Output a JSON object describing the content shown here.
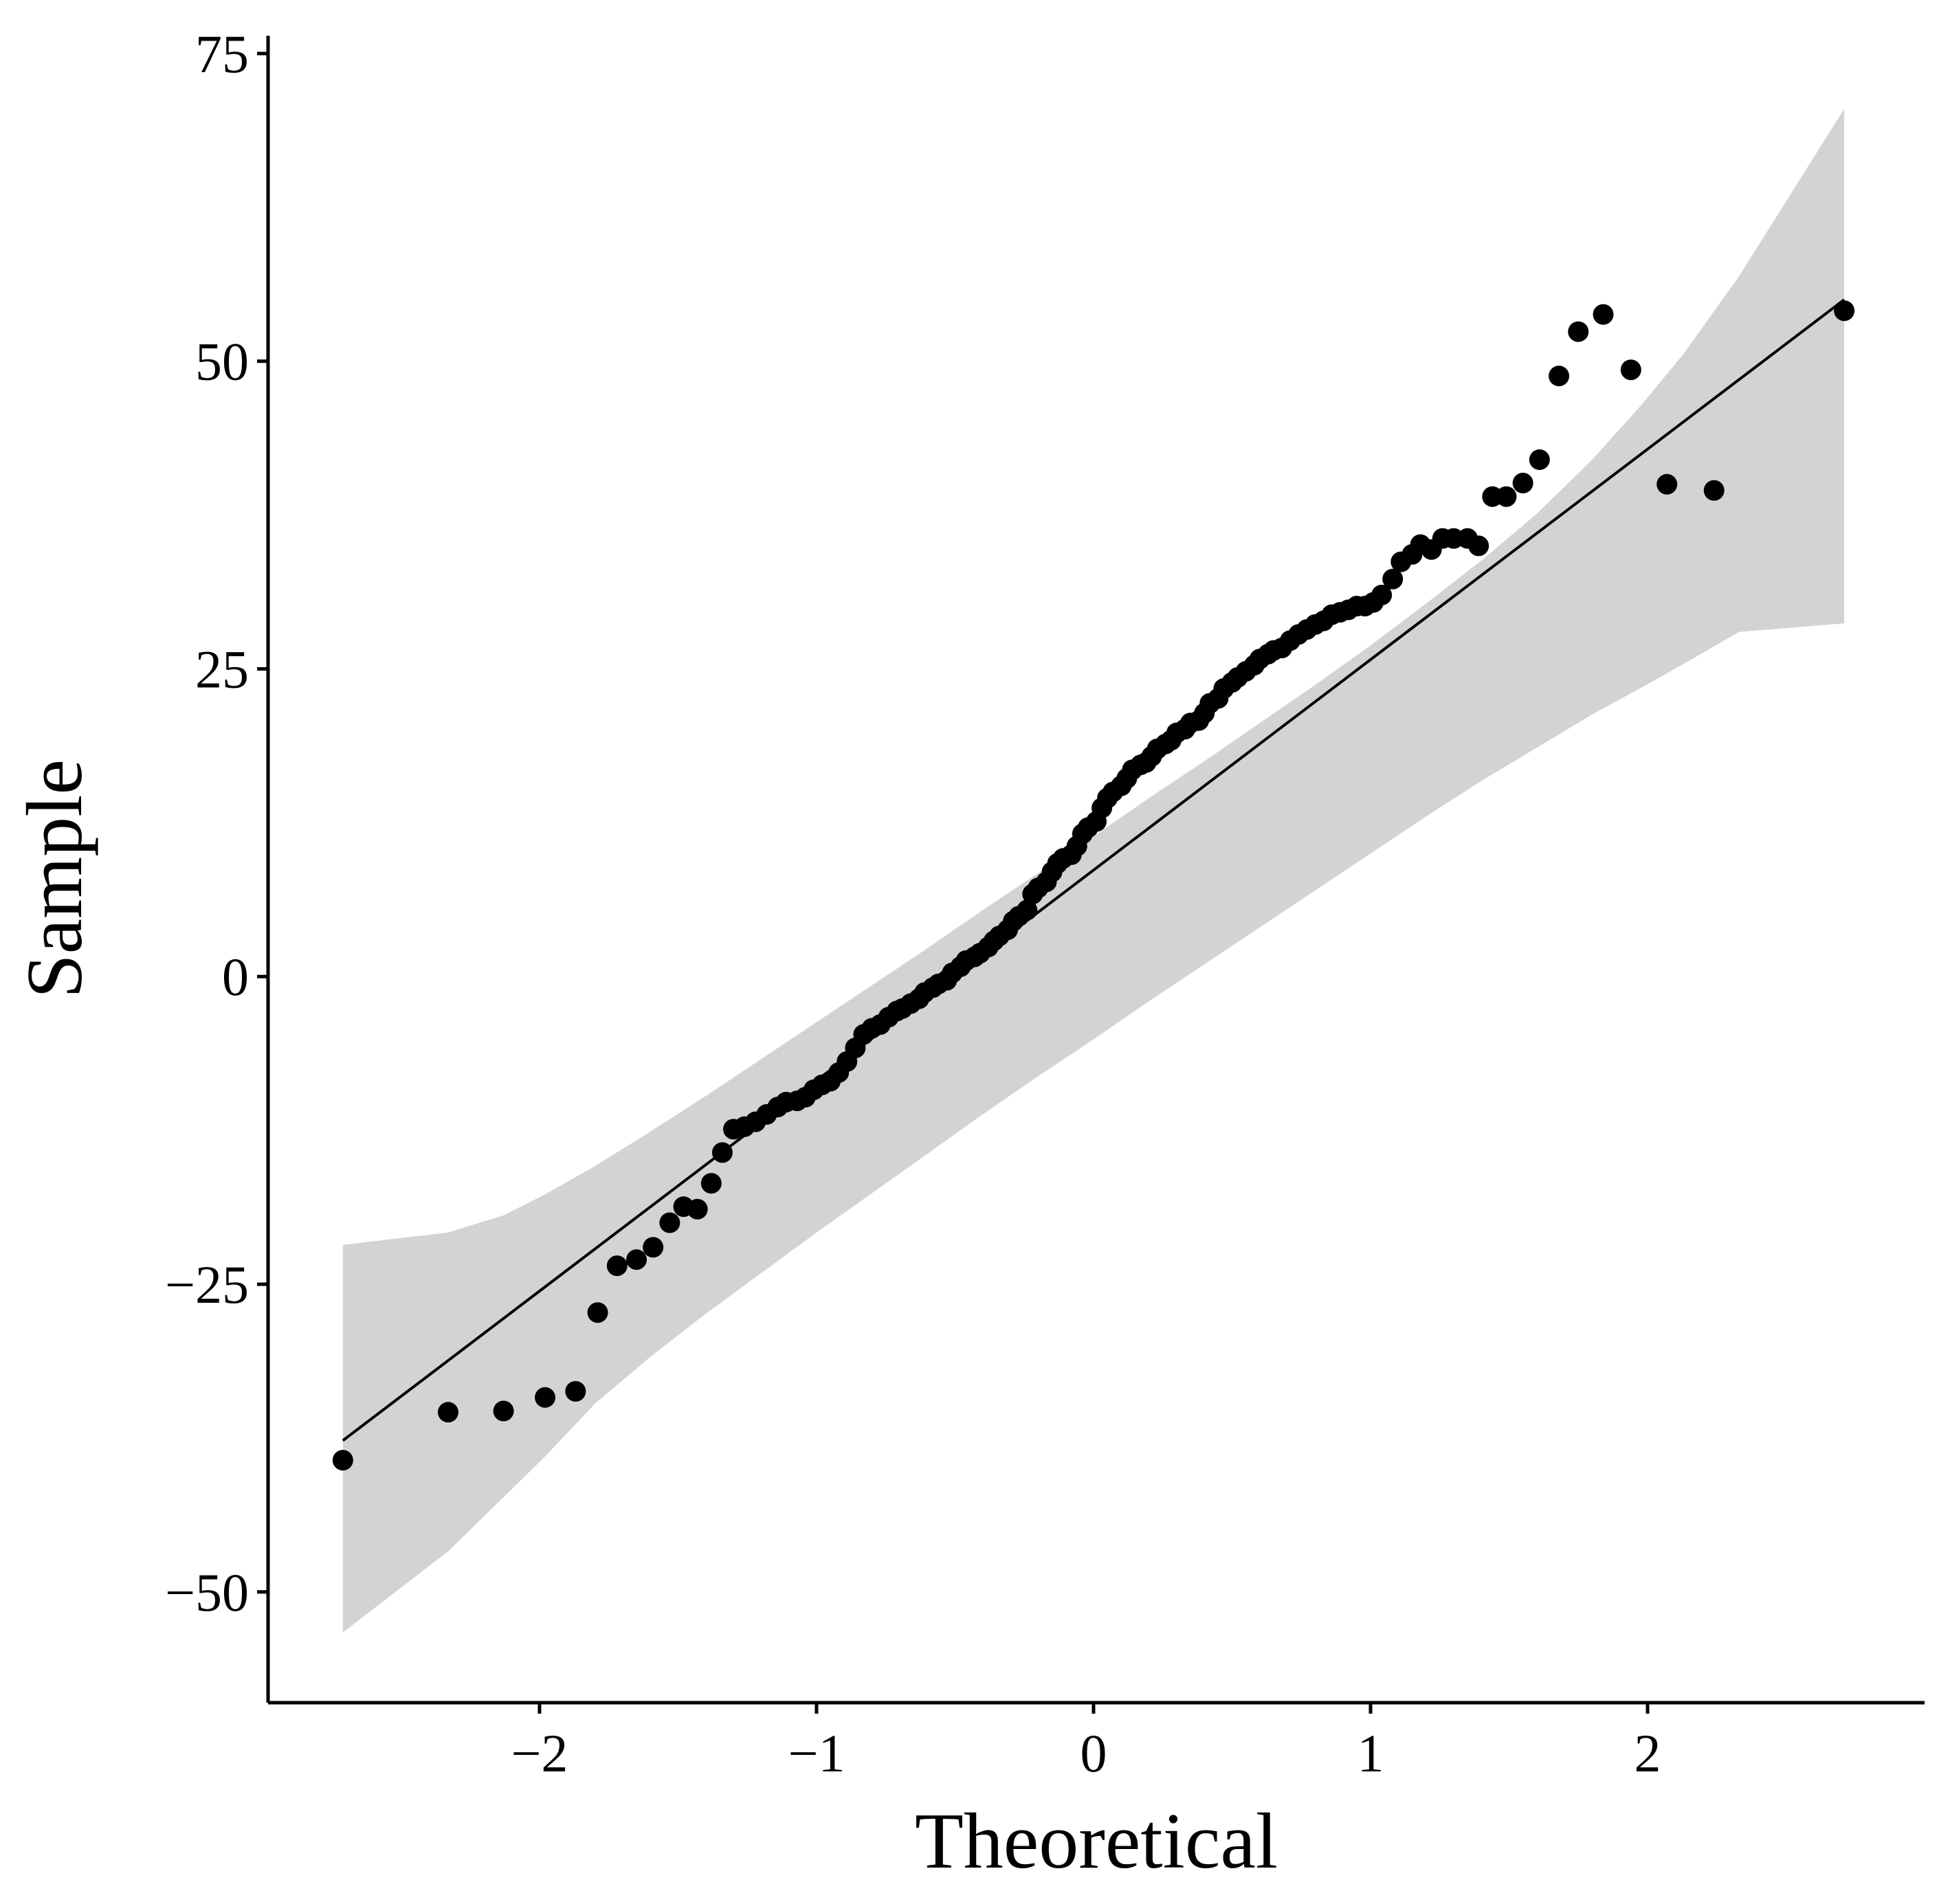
{
  "chart_data": {
    "type": "scatter",
    "title": "",
    "xlabel": "Theoretical",
    "ylabel": "Sample",
    "xlim": [
      -2.98,
      3.0
    ],
    "ylim": [
      -59,
      76
    ],
    "x_ticks": [
      -2,
      -1,
      0,
      1,
      2
    ],
    "y_ticks": [
      -50,
      -25,
      0,
      25,
      50,
      75
    ],
    "x_tick_labels": [
      "−2",
      "−1",
      "0",
      "1",
      "2"
    ],
    "y_tick_labels": [
      "−50",
      "−25",
      "0",
      "25",
      "50",
      "75"
    ],
    "grid": false,
    "legend": "none",
    "colors": {
      "points": "#000000",
      "line": "#000000",
      "band": "#d3d3d3"
    },
    "reference_line": {
      "x": [
        -2.71,
        2.71
      ],
      "y": [
        -37.7,
        55.0
      ]
    },
    "confidence_band": {
      "x": [
        -2.71,
        -2.33,
        -2.13,
        -1.98,
        -1.8,
        -1.6,
        -1.4,
        -1.2,
        -1.0,
        -0.8,
        -0.6,
        -0.4,
        -0.2,
        0.0,
        0.2,
        0.4,
        0.6,
        0.8,
        1.0,
        1.2,
        1.4,
        1.6,
        1.8,
        1.98,
        2.13,
        2.33,
        2.71
      ],
      "upper": [
        -21.8,
        -20.8,
        -19.4,
        -17.7,
        -15.4,
        -12.6,
        -9.7,
        -6.7,
        -3.7,
        -0.7,
        2.3,
        5.4,
        8.4,
        11.4,
        14.5,
        17.5,
        20.6,
        23.7,
        26.9,
        30.3,
        33.8,
        37.6,
        42.0,
        46.5,
        50.6,
        56.9,
        70.5
      ],
      "lower": [
        -53.3,
        -46.7,
        -42.3,
        -39.0,
        -34.7,
        -30.9,
        -27.4,
        -24.1,
        -20.8,
        -17.6,
        -14.4,
        -11.2,
        -8.1,
        -5.1,
        -2.0,
        1.0,
        4.0,
        7.0,
        10.0,
        13.0,
        15.9,
        18.6,
        21.3,
        23.5,
        25.4,
        28.0,
        28.7
      ]
    },
    "points": {
      "x": [
        -2.71,
        -2.33,
        -2.13,
        -1.98,
        -1.87,
        -1.79,
        -1.72,
        -1.65,
        -1.59,
        -1.53,
        -1.48,
        -1.43,
        -1.38,
        -1.34,
        -1.3,
        -1.26,
        -1.22,
        -1.18,
        -1.14,
        -1.11,
        -1.07,
        -1.04,
        -1.01,
        -0.98,
        -0.95,
        -0.92,
        -0.89,
        -0.86,
        -0.83,
        -0.8,
        -0.77,
        -0.74,
        -0.71,
        -0.69,
        -0.66,
        -0.63,
        -0.61,
        -0.58,
        -0.56,
        -0.53,
        -0.51,
        -0.48,
        -0.46,
        -0.43,
        -0.41,
        -0.38,
        -0.36,
        -0.34,
        -0.31,
        -0.29,
        -0.27,
        -0.24,
        -0.22,
        -0.2,
        -0.17,
        -0.15,
        -0.13,
        -0.11,
        -0.08,
        -0.06,
        -0.04,
        -0.02,
        0.01,
        0.03,
        0.05,
        0.07,
        0.1,
        0.12,
        0.14,
        0.17,
        0.19,
        0.21,
        0.23,
        0.26,
        0.28,
        0.3,
        0.33,
        0.35,
        0.38,
        0.4,
        0.42,
        0.45,
        0.47,
        0.5,
        0.52,
        0.55,
        0.58,
        0.6,
        0.63,
        0.65,
        0.68,
        0.71,
        0.74,
        0.77,
        0.8,
        0.83,
        0.86,
        0.89,
        0.92,
        0.95,
        0.98,
        1.01,
        1.04,
        1.08,
        1.11,
        1.15,
        1.18,
        1.22,
        1.26,
        1.3,
        1.35,
        1.39,
        1.44,
        1.49,
        1.55,
        1.61,
        1.68,
        1.75,
        1.84,
        1.94,
        2.07,
        2.24,
        2.71
      ],
      "y": [
        -39.3,
        -35.4,
        -35.3,
        -34.2,
        -33.7,
        -27.3,
        -23.5,
        -23.0,
        -22.0,
        -20.0,
        -18.7,
        -18.9,
        -16.8,
        -14.3,
        -12.4,
        -12.2,
        -11.8,
        -11.2,
        -10.6,
        -10.2,
        -10.1,
        -9.8,
        -9.2,
        -8.8,
        -8.5,
        -7.8,
        -6.9,
        -5.8,
        -4.7,
        -4.2,
        -3.9,
        -3.3,
        -2.8,
        -2.6,
        -2.2,
        -1.8,
        -1.3,
        -0.9,
        -0.6,
        -0.3,
        0.3,
        0.8,
        1.3,
        1.6,
        1.9,
        2.4,
        2.9,
        3.3,
        3.8,
        4.5,
        4.9,
        5.4,
        6.7,
        7.2,
        7.7,
        8.5,
        9.2,
        9.6,
        9.9,
        10.6,
        11.6,
        12.1,
        12.6,
        13.7,
        14.5,
        15.0,
        15.5,
        16.1,
        16.8,
        17.2,
        17.4,
        17.9,
        18.5,
        18.9,
        19.2,
        19.8,
        20.1,
        20.6,
        20.8,
        21.4,
        22.2,
        22.6,
        23.4,
        23.9,
        24.3,
        24.8,
        25.3,
        25.8,
        26.2,
        26.5,
        26.7,
        27.3,
        27.8,
        28.2,
        28.6,
        28.9,
        29.4,
        29.6,
        29.8,
        30.1,
        30.1,
        30.4,
        31.0,
        32.3,
        33.7,
        34.3,
        35.1,
        34.7,
        35.6,
        35.6,
        35.6,
        35.0,
        39.0,
        39.0,
        40.1,
        42.0,
        48.8,
        52.4,
        53.8,
        49.3,
        40.0,
        39.5,
        54.1
      ]
    }
  }
}
